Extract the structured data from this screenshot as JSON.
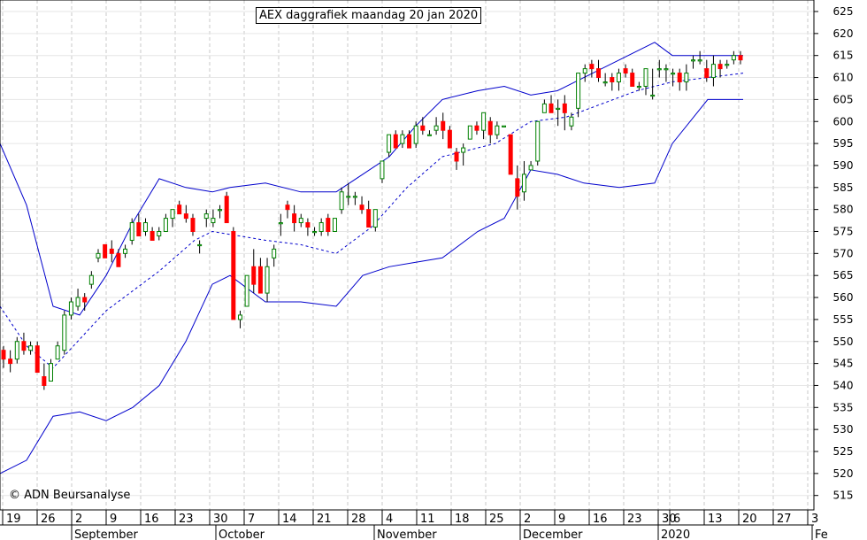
{
  "title": "AEX daggrafiek maandag 20 jan 2020",
  "copyright": "© ADN Beursanalyse",
  "chart_data": {
    "type": "candlestick",
    "title": "AEX daggrafiek maandag 20 jan 2020",
    "y_axis": {
      "position": "right",
      "min": 510,
      "max": 627,
      "ticks": [
        515,
        520,
        525,
        530,
        535,
        540,
        545,
        550,
        555,
        560,
        565,
        570,
        575,
        580,
        585,
        590,
        595,
        600,
        605,
        610,
        615,
        620,
        625
      ]
    },
    "x_axis": {
      "day_labels": [
        "19",
        "26",
        "2",
        "9",
        "16",
        "23",
        "30",
        "7",
        "14",
        "21",
        "28",
        "4",
        "11",
        "18",
        "25",
        "2",
        "9",
        "16",
        "23",
        "30",
        "6",
        "13",
        "20",
        "27",
        "3"
      ],
      "month_labels": [
        "September",
        "October",
        "November",
        "December",
        "2020",
        "Fe"
      ]
    },
    "grid": true,
    "up_color": "#008000",
    "down_color": "#ff0000",
    "band_color": "#0000cc",
    "candles": [
      [
        548,
        549,
        544,
        546
      ],
      [
        546,
        548,
        543,
        545
      ],
      [
        546,
        551,
        545,
        550
      ],
      [
        550,
        552,
        547,
        548
      ],
      [
        548,
        550,
        547,
        549
      ],
      [
        549,
        550,
        543,
        543
      ],
      [
        542,
        545,
        539,
        540
      ],
      [
        541,
        546,
        541,
        545
      ],
      [
        546,
        550,
        546,
        549
      ],
      [
        548,
        557,
        547,
        556
      ],
      [
        556,
        560,
        555,
        559
      ],
      [
        558,
        562,
        557,
        560
      ],
      [
        560,
        561,
        557,
        559
      ],
      [
        563,
        566,
        562,
        565
      ],
      [
        569,
        571,
        568,
        570
      ],
      [
        572,
        572,
        569,
        569
      ],
      [
        571,
        573,
        568,
        570
      ],
      [
        570,
        571,
        567,
        567
      ],
      [
        570,
        572,
        569,
        571
      ],
      [
        573,
        578,
        572,
        577
      ],
      [
        577,
        579,
        574,
        574
      ],
      [
        575,
        578,
        574,
        577
      ],
      [
        575,
        576,
        573,
        573
      ],
      [
        574,
        576,
        573,
        575
      ],
      [
        575,
        579,
        575,
        578
      ],
      [
        578,
        580,
        576,
        580
      ],
      [
        581,
        582,
        579,
        579
      ],
      [
        579,
        581,
        577,
        578
      ],
      [
        578,
        579,
        574,
        575
      ],
      [
        572,
        573,
        570,
        572
      ],
      [
        578,
        580,
        576,
        579
      ],
      [
        577,
        580,
        576,
        578
      ],
      [
        580,
        581,
        578,
        580
      ],
      [
        583,
        584,
        577,
        577
      ],
      [
        575,
        576,
        555,
        555
      ],
      [
        555,
        557,
        553,
        556
      ],
      [
        558,
        565,
        558,
        565
      ],
      [
        567,
        571,
        561,
        563
      ],
      [
        567,
        569,
        561,
        561
      ],
      [
        561,
        569,
        559,
        567
      ],
      [
        569,
        572,
        567,
        571
      ],
      [
        577,
        579,
        574,
        577
      ],
      [
        581,
        582,
        578,
        580
      ],
      [
        579,
        581,
        575,
        577
      ],
      [
        577,
        579,
        576,
        578
      ],
      [
        577,
        578,
        574,
        576
      ],
      [
        575,
        576,
        574,
        575
      ],
      [
        575,
        578,
        574,
        577
      ],
      [
        578,
        579,
        574,
        575
      ],
      [
        575,
        578,
        575,
        578
      ],
      [
        580,
        585,
        579,
        584
      ],
      [
        583,
        586,
        581,
        583
      ],
      [
        583,
        584,
        581,
        583
      ],
      [
        581,
        583,
        579,
        580
      ],
      [
        580,
        582,
        576,
        576
      ],
      [
        576,
        580,
        575,
        580
      ],
      [
        587,
        591,
        586,
        591
      ],
      [
        593,
        597,
        592,
        597
      ],
      [
        597,
        598,
        594,
        594
      ],
      [
        595,
        598,
        594,
        597
      ],
      [
        597,
        598,
        594,
        594
      ],
      [
        595,
        600,
        594,
        599
      ],
      [
        599,
        601,
        597,
        598
      ],
      [
        597,
        598,
        597,
        597
      ],
      [
        598,
        601,
        597,
        599
      ],
      [
        600,
        602,
        596,
        598
      ],
      [
        598,
        599,
        594,
        594
      ],
      [
        593,
        594,
        589,
        591
      ],
      [
        593,
        595,
        590,
        594
      ],
      [
        596,
        599,
        596,
        599
      ],
      [
        599,
        600,
        597,
        598
      ],
      [
        598,
        602,
        596,
        602
      ],
      [
        600,
        601,
        595,
        597
      ],
      [
        597,
        600,
        596,
        599
      ],
      [
        599,
        598,
        598,
        599
      ],
      [
        597,
        597,
        589,
        588
      ],
      [
        587,
        590,
        580,
        583
      ],
      [
        584,
        591,
        582,
        588
      ],
      [
        589,
        591,
        590,
        590
      ],
      [
        591,
        600,
        590,
        600
      ],
      [
        602,
        605,
        602,
        604
      ],
      [
        604,
        606,
        602,
        602
      ],
      [
        603,
        605,
        599,
        603
      ],
      [
        604,
        606,
        598,
        602
      ],
      [
        599,
        602,
        598,
        601
      ],
      [
        603,
        611,
        601,
        611
      ],
      [
        611,
        613,
        609,
        612
      ],
      [
        613,
        614,
        610,
        612
      ],
      [
        612,
        614,
        609,
        610
      ],
      [
        609,
        611,
        608,
        609
      ],
      [
        610,
        611,
        607,
        609
      ],
      [
        609,
        612,
        607,
        611
      ],
      [
        612,
        613,
        610,
        611
      ],
      [
        611,
        612,
        608,
        608
      ],
      [
        608,
        609,
        607,
        608
      ],
      [
        608,
        612,
        606,
        612
      ],
      [
        606,
        612,
        605,
        606
      ],
      [
        612,
        614,
        610,
        612
      ],
      [
        612,
        613,
        609,
        612
      ],
      [
        611,
        612,
        608,
        611
      ],
      [
        611,
        612,
        607,
        609
      ],
      [
        609,
        613,
        607,
        611
      ],
      [
        614,
        615,
        612,
        614
      ],
      [
        614,
        616,
        613,
        614
      ],
      [
        612,
        614,
        609,
        610
      ],
      [
        610,
        615,
        608,
        613
      ],
      [
        613,
        614,
        610,
        612
      ],
      [
        613,
        614,
        612,
        613
      ],
      [
        614,
        616,
        613,
        615
      ],
      [
        615,
        616,
        613,
        614
      ]
    ],
    "middle_band": [
      [
        0,
        558
      ],
      [
        30,
        549
      ],
      [
        60,
        544
      ],
      [
        120,
        557
      ],
      [
        180,
        566
      ],
      [
        220,
        573
      ],
      [
        240,
        575
      ],
      [
        300,
        573
      ],
      [
        340,
        572
      ],
      [
        380,
        570
      ],
      [
        420,
        576
      ],
      [
        460,
        585
      ],
      [
        500,
        592
      ],
      [
        560,
        595
      ],
      [
        600,
        600
      ],
      [
        640,
        601
      ],
      [
        680,
        604
      ],
      [
        720,
        607
      ],
      [
        760,
        609
      ],
      [
        800,
        610
      ],
      [
        840,
        611
      ]
    ],
    "upper_band": [
      [
        0,
        595
      ],
      [
        30,
        581
      ],
      [
        60,
        558
      ],
      [
        90,
        556
      ],
      [
        120,
        565
      ],
      [
        150,
        577
      ],
      [
        180,
        587
      ],
      [
        210,
        585
      ],
      [
        240,
        584
      ],
      [
        260,
        585
      ],
      [
        300,
        586
      ],
      [
        340,
        584
      ],
      [
        380,
        584
      ],
      [
        410,
        588
      ],
      [
        440,
        592
      ],
      [
        470,
        599
      ],
      [
        500,
        605
      ],
      [
        540,
        607
      ],
      [
        570,
        608
      ],
      [
        600,
        606
      ],
      [
        630,
        607
      ],
      [
        660,
        610
      ],
      [
        700,
        614
      ],
      [
        740,
        618
      ],
      [
        760,
        615
      ],
      [
        800,
        615
      ],
      [
        840,
        615
      ]
    ],
    "lower_band": [
      [
        0,
        520
      ],
      [
        30,
        523
      ],
      [
        60,
        533
      ],
      [
        90,
        534
      ],
      [
        120,
        532
      ],
      [
        150,
        535
      ],
      [
        180,
        540
      ],
      [
        210,
        550
      ],
      [
        240,
        563
      ],
      [
        260,
        565
      ],
      [
        300,
        559
      ],
      [
        340,
        559
      ],
      [
        380,
        558
      ],
      [
        410,
        565
      ],
      [
        440,
        567
      ],
      [
        470,
        568
      ],
      [
        500,
        569
      ],
      [
        540,
        575
      ],
      [
        570,
        578
      ],
      [
        600,
        589
      ],
      [
        630,
        588
      ],
      [
        660,
        586
      ],
      [
        700,
        585
      ],
      [
        740,
        586
      ],
      [
        760,
        595
      ],
      [
        800,
        605
      ],
      [
        840,
        605
      ]
    ]
  }
}
